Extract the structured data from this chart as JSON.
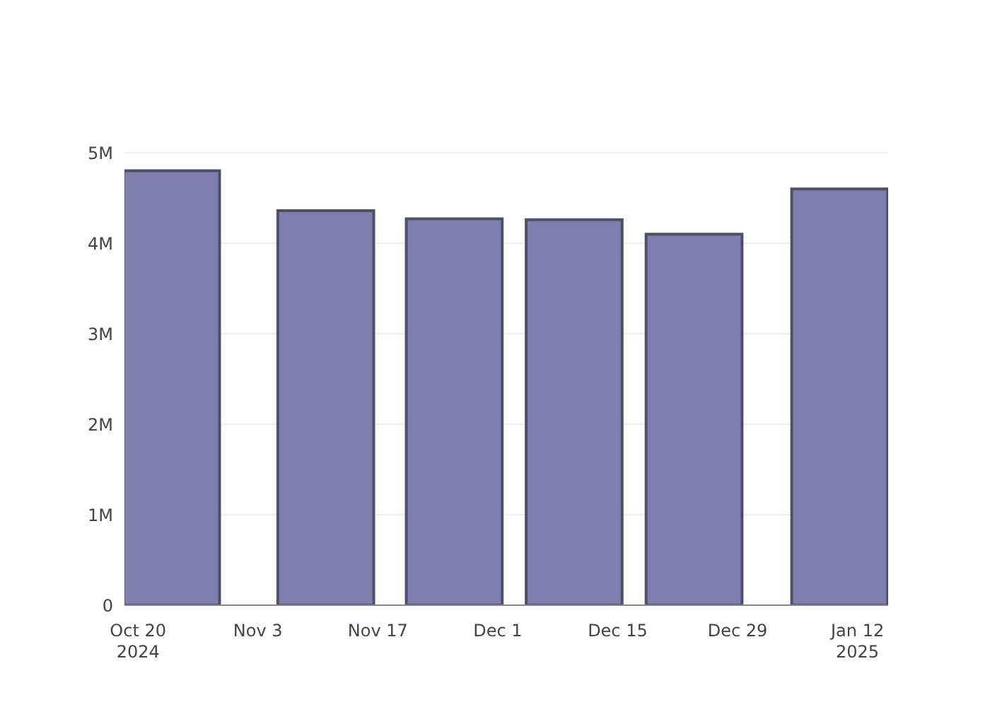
{
  "chart_data": {
    "type": "bar",
    "x": [
      "2024-10-24",
      "2024-11-11",
      "2024-11-26",
      "2024-12-10",
      "2024-12-24",
      "2025-01-10"
    ],
    "values": [
      4800000,
      4360000,
      4270000,
      4260000,
      4100000,
      4600000
    ],
    "color": "#7f7faf",
    "xlim": [
      "2024-10-18T10:00",
      "2025-01-15T14:00"
    ],
    "xticks": [
      {
        "value": "2024-10-20",
        "label": "Oct 20\n2024"
      },
      {
        "value": "2024-11-03",
        "label": "Nov 3"
      },
      {
        "value": "2024-11-17",
        "label": "Nov 17"
      },
      {
        "value": "2024-12-01",
        "label": "Dec 1"
      },
      {
        "value": "2024-12-15",
        "label": "Dec 15"
      },
      {
        "value": "2024-12-29",
        "label": "Dec 29"
      },
      {
        "value": "2025-01-12",
        "label": "Jan 12\n2025"
      }
    ],
    "ylim": [
      0,
      5000000
    ],
    "yticks": [
      0,
      {
        "value": 1000000,
        "label": "1M"
      },
      {
        "value": 2000000,
        "label": "2M"
      },
      {
        "value": 3000000,
        "label": "3M"
      },
      {
        "value": 4000000,
        "label": "4M"
      },
      {
        "value": 5000000,
        "label": "5M"
      }
    ],
    "grid": "y"
  }
}
